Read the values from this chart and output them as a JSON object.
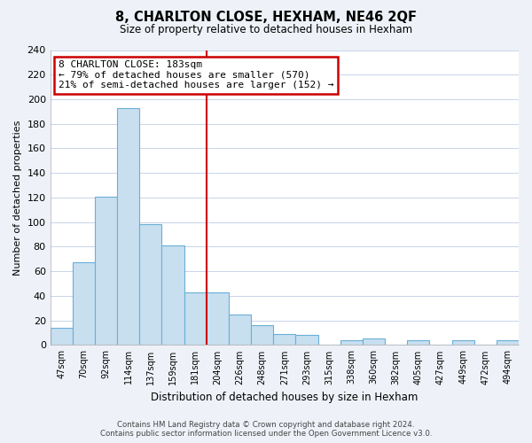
{
  "title": "8, CHARLTON CLOSE, HEXHAM, NE46 2QF",
  "subtitle": "Size of property relative to detached houses in Hexham",
  "xlabel": "Distribution of detached houses by size in Hexham",
  "ylabel": "Number of detached properties",
  "bar_labels": [
    "47sqm",
    "70sqm",
    "92sqm",
    "114sqm",
    "137sqm",
    "159sqm",
    "181sqm",
    "204sqm",
    "226sqm",
    "248sqm",
    "271sqm",
    "293sqm",
    "315sqm",
    "338sqm",
    "360sqm",
    "382sqm",
    "405sqm",
    "427sqm",
    "449sqm",
    "472sqm",
    "494sqm"
  ],
  "bar_values": [
    14,
    67,
    121,
    193,
    98,
    81,
    43,
    43,
    25,
    16,
    9,
    8,
    0,
    4,
    5,
    0,
    4,
    0,
    4,
    0,
    4
  ],
  "bar_color": "#c8dff0",
  "bar_edge_color": "#6aafd6",
  "vline_x_index": 6,
  "vline_color": "#cc0000",
  "annotation_title": "8 CHARLTON CLOSE: 183sqm",
  "annotation_line1": "← 79% of detached houses are smaller (570)",
  "annotation_line2": "21% of semi-detached houses are larger (152) →",
  "annotation_box_edge": "#cc0000",
  "ylim": [
    0,
    240
  ],
  "yticks": [
    0,
    20,
    40,
    60,
    80,
    100,
    120,
    140,
    160,
    180,
    200,
    220,
    240
  ],
  "footer1": "Contains HM Land Registry data © Crown copyright and database right 2024.",
  "footer2": "Contains public sector information licensed under the Open Government Licence v3.0.",
  "background_color": "#eef2f8",
  "plot_bg_color": "#ffffff",
  "grid_color": "#c8d4e8"
}
